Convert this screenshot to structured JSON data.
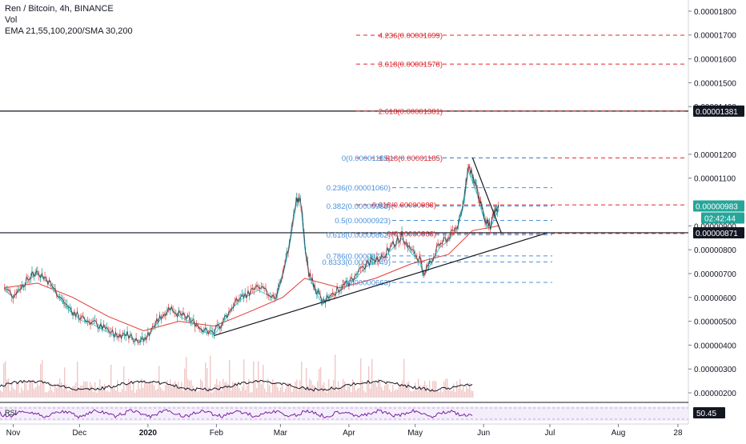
{
  "header": {
    "title": "Ren / Bitcoin, 4h, BINANCE",
    "vol_label": "Vol",
    "indicators": "EMA 21,55,100,200/SMA 30,200"
  },
  "rsi_label": "RSI",
  "colors": {
    "red_fib": "#e0262b",
    "blue_fib": "#4a90d9",
    "price_badge": "#26a69a",
    "price_badge_text": "#ffffff",
    "line_badge": "#131722",
    "rsi_purple": "#7b1fa2",
    "rsi_band": "#e9e1f4",
    "volume": "#f1c7c7",
    "ema_red": "#e53935",
    "ema_cyan": "#26c6da",
    "ema_dark": "#1f2d3d",
    "trend": "#131722"
  },
  "chart_data": {
    "type": "line",
    "title": "Ren / Bitcoin, 4h, BINANCE",
    "x_ticks": [
      "Nov",
      "Dec",
      "2020",
      "Feb",
      "Mar",
      "Apr",
      "May",
      "Jun",
      "Jul",
      "Aug",
      "28"
    ],
    "y_ticks": [
      "0.00001800",
      "0.00001700",
      "0.00001600",
      "0.00001500",
      "0.00001400",
      "0.00001200",
      "0.00001100",
      "0.00000900",
      "0.00000800",
      "0.00000700",
      "0.00000600",
      "0.00000500",
      "0.00000400",
      "0.00000300",
      "0.00000200"
    ],
    "ylim": [
      1.7e-06,
      1.84e-05
    ],
    "price_series": {
      "name": "Ren / Bitcoin",
      "points": [
        [
          "2019-10-28",
          6.4e-06
        ],
        [
          "2019-11-01",
          6.1e-06
        ],
        [
          "2019-11-05",
          6.5e-06
        ],
        [
          "2019-11-09",
          6.9e-06
        ],
        [
          "2019-11-12",
          7.1e-06
        ],
        [
          "2019-11-16",
          6.8e-06
        ],
        [
          "2019-11-20",
          6.3e-06
        ],
        [
          "2019-11-24",
          5.8e-06
        ],
        [
          "2019-11-28",
          5.4e-06
        ],
        [
          "2019-12-02",
          5.1e-06
        ],
        [
          "2019-12-06",
          5e-06
        ],
        [
          "2019-12-10",
          4.8e-06
        ],
        [
          "2019-12-14",
          4.6e-06
        ],
        [
          "2019-12-18",
          4.4e-06
        ],
        [
          "2019-12-22",
          4.5e-06
        ],
        [
          "2019-12-26",
          4.3e-06
        ],
        [
          "2019-12-30",
          4.2e-06
        ],
        [
          "2020-01-03",
          4.7e-06
        ],
        [
          "2020-01-07",
          5.2e-06
        ],
        [
          "2020-01-11",
          5.6e-06
        ],
        [
          "2020-01-15",
          5.3e-06
        ],
        [
          "2020-01-19",
          5.1e-06
        ],
        [
          "2020-01-23",
          4.9e-06
        ],
        [
          "2020-01-27",
          4.6e-06
        ],
        [
          "2020-01-31",
          4.5e-06
        ],
        [
          "2020-02-04",
          5e-06
        ],
        [
          "2020-02-08",
          5.6e-06
        ],
        [
          "2020-02-12",
          6e-06
        ],
        [
          "2020-02-16",
          6.2e-06
        ],
        [
          "2020-02-20",
          6.4e-06
        ],
        [
          "2020-02-24",
          6.2e-06
        ],
        [
          "2020-02-28",
          6e-06
        ],
        [
          "2020-03-02",
          7e-06
        ],
        [
          "2020-03-05",
          8.2e-06
        ],
        [
          "2020-03-08",
          1e-05
        ],
        [
          "2020-03-10",
          1.03e-05
        ],
        [
          "2020-03-12",
          8.2e-06
        ],
        [
          "2020-03-14",
          7e-06
        ],
        [
          "2020-03-17",
          6.3e-06
        ],
        [
          "2020-03-20",
          5.8e-06
        ],
        [
          "2020-03-24",
          6.1e-06
        ],
        [
          "2020-03-28",
          6.4e-06
        ],
        [
          "2020-04-01",
          6.6e-06
        ],
        [
          "2020-04-05",
          7e-06
        ],
        [
          "2020-04-09",
          7.4e-06
        ],
        [
          "2020-04-13",
          7.6e-06
        ],
        [
          "2020-04-17",
          7.8e-06
        ],
        [
          "2020-04-21",
          8.2e-06
        ],
        [
          "2020-04-25",
          8.6e-06
        ],
        [
          "2020-04-29",
          8e-06
        ],
        [
          "2020-05-03",
          7.6e-06
        ],
        [
          "2020-05-05",
          7e-06
        ],
        [
          "2020-05-08",
          7.5e-06
        ],
        [
          "2020-05-12",
          8.2e-06
        ],
        [
          "2020-05-16",
          8.5e-06
        ],
        [
          "2020-05-20",
          9e-06
        ],
        [
          "2020-05-23",
          1e-05
        ],
        [
          "2020-05-25",
          1.15e-05
        ],
        [
          "2020-05-27",
          1.1e-05
        ],
        [
          "2020-05-29",
          1.05e-05
        ],
        [
          "2020-05-31",
          9.8e-06
        ],
        [
          "2020-06-02",
          9.2e-06
        ],
        [
          "2020-06-04",
          9e-06
        ],
        [
          "2020-06-06",
          9.5e-06
        ],
        [
          "2020-06-08",
          9.83e-06
        ]
      ]
    },
    "ema_slow": {
      "points": [
        [
          "2019-10-28",
          6.4e-06
        ],
        [
          "2019-11-12",
          6.6e-06
        ],
        [
          "2019-11-28",
          6e-06
        ],
        [
          "2019-12-14",
          5.2e-06
        ],
        [
          "2019-12-30",
          4.6e-06
        ],
        [
          "2020-01-15",
          5e-06
        ],
        [
          "2020-01-31",
          4.8e-06
        ],
        [
          "2020-02-16",
          5.4e-06
        ],
        [
          "2020-03-02",
          6e-06
        ],
        [
          "2020-03-12",
          6.8e-06
        ],
        [
          "2020-03-28",
          6.4e-06
        ],
        [
          "2020-04-13",
          6.8e-06
        ],
        [
          "2020-04-29",
          7.4e-06
        ],
        [
          "2020-05-16",
          7.8e-06
        ],
        [
          "2020-05-27",
          8.8e-06
        ],
        [
          "2020-06-08",
          9e-06
        ]
      ]
    },
    "fib_red": [
      {
        "label": "4.236(0.00001699)",
        "value": 1.699e-05
      },
      {
        "label": "3.618(0.00001578)",
        "value": 1.578e-05
      },
      {
        "label": "2.618(0.00001381)",
        "value": 1.381e-05
      },
      {
        "label": "1.618(0.00001185)",
        "value": 1.185e-05
      },
      {
        "label": "0.618(0.00000988)",
        "value": 9.88e-06
      },
      {
        "label": "0(0.00000868)",
        "value": 8.68e-06
      }
    ],
    "fib_blue": [
      {
        "label": "0(0.00001185)",
        "value": 1.185e-05
      },
      {
        "label": "0.236(0.00001060)",
        "value": 1.06e-05
      },
      {
        "label": "0.382(0.00000983)",
        "value": 9.83e-06
      },
      {
        "label": "0.5(0.00000923)",
        "value": 9.23e-06
      },
      {
        "label": "0.618(0.00000862)",
        "value": 8.62e-06
      },
      {
        "label": "0.786(0.00000774)",
        "value": 7.74e-06
      },
      {
        "label": "0.8333(0.00000749)",
        "value": 7.49e-06
      },
      {
        "label": "1(0.00000663)",
        "value": 6.63e-06
      }
    ],
    "horizontal_lines": [
      {
        "label": "0.00001381",
        "value": 1.381e-05
      },
      {
        "label": "0.00000871",
        "value": 8.71e-06
      }
    ],
    "current_price": {
      "label": "0.00000983",
      "value": 9.83e-06
    },
    "countdown": "02:42:44",
    "trendlines": [
      {
        "from": [
          "2020-01-31",
          4.4e-06
        ],
        "to": [
          "2020-06-30",
          8.71e-06
        ]
      },
      {
        "from": [
          "2020-05-27",
          1.185e-05
        ],
        "to": [
          "2020-06-09",
          8.71e-06
        ]
      }
    ],
    "rsi_value": "50.45",
    "legend": "none",
    "grid": false
  }
}
